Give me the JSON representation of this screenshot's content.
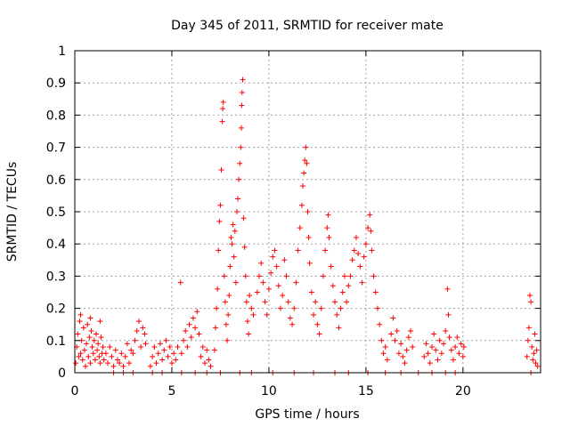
{
  "chart_data": {
    "type": "scatter",
    "title": "Day 345 of 2011, SRMTID for receiver mate",
    "xlabel": "GPS time / hours",
    "ylabel": "SRMTID / TECUs",
    "xlim": [
      0,
      24
    ],
    "ylim": [
      0,
      1
    ],
    "xticks": [
      "0",
      "5",
      "10",
      "15",
      "20"
    ],
    "yticks": [
      "0",
      "0.1",
      "0.2",
      "0.3",
      "0.4",
      "0.5",
      "0.6",
      "0.7",
      "0.8",
      "0.9",
      "1"
    ],
    "grid": true,
    "marker": "plus",
    "color": "#ff0000",
    "points": [
      [
        0.05,
        0.03
      ],
      [
        0.1,
        0.08
      ],
      [
        0.15,
        0.12
      ],
      [
        0.2,
        0.05
      ],
      [
        0.25,
        0.16
      ],
      [
        0.3,
        0.06
      ],
      [
        0.35,
        0.1
      ],
      [
        0.4,
        0.04
      ],
      [
        0.45,
        0.14
      ],
      [
        0.5,
        0.07
      ],
      [
        0.55,
        0.02
      ],
      [
        0.6,
        0.09
      ],
      [
        0.65,
        0.15
      ],
      [
        0.7,
        0.05
      ],
      [
        0.75,
        0.11
      ],
      [
        0.8,
        0.03
      ],
      [
        0.85,
        0.13
      ],
      [
        0.9,
        0.08
      ],
      [
        0.95,
        0.06
      ],
      [
        1.0,
        0.1
      ],
      [
        1.05,
        0.04
      ],
      [
        1.1,
        0.12
      ],
      [
        1.15,
        0.07
      ],
      [
        1.2,
        0.09
      ],
      [
        1.25,
        0.05
      ],
      [
        1.3,
        0.03
      ],
      [
        1.35,
        0.11
      ],
      [
        1.4,
        0.06
      ],
      [
        1.45,
        0.08
      ],
      [
        1.5,
        0.04
      ],
      [
        1.6,
        0.06
      ],
      [
        1.7,
        0.03
      ],
      [
        1.8,
        0.08
      ],
      [
        1.9,
        0.05
      ],
      [
        2.0,
        0.02
      ],
      [
        2.1,
        0.07
      ],
      [
        2.2,
        0.04
      ],
      [
        2.3,
        0.03
      ],
      [
        2.4,
        0.06
      ],
      [
        2.5,
        0.02
      ],
      [
        2.6,
        0.05
      ],
      [
        2.7,
        0.09
      ],
      [
        2.8,
        0.03
      ],
      [
        2.9,
        0.07
      ],
      [
        3.0,
        0.06
      ],
      [
        3.1,
        0.1
      ],
      [
        3.2,
        0.13
      ],
      [
        3.3,
        0.16
      ],
      [
        3.4,
        0.08
      ],
      [
        3.5,
        0.14
      ],
      [
        3.6,
        0.12
      ],
      [
        3.65,
        0.09
      ],
      [
        0.3,
        0.18
      ],
      [
        0.8,
        0.17
      ],
      [
        1.3,
        0.16
      ],
      [
        3.9,
        0.02
      ],
      [
        4.0,
        0.05
      ],
      [
        4.1,
        0.08
      ],
      [
        4.2,
        0.03
      ],
      [
        4.3,
        0.06
      ],
      [
        4.4,
        0.09
      ],
      [
        4.5,
        0.04
      ],
      [
        4.6,
        0.07
      ],
      [
        4.7,
        0.1
      ],
      [
        4.8,
        0.05
      ],
      [
        4.9,
        0.08
      ],
      [
        5.0,
        0.03
      ],
      [
        5.1,
        0.06
      ],
      [
        5.2,
        0.04
      ],
      [
        5.3,
        0.08
      ],
      [
        5.45,
        0.28
      ],
      [
        5.5,
        0.06
      ],
      [
        5.6,
        0.1
      ],
      [
        5.7,
        0.13
      ],
      [
        5.8,
        0.08
      ],
      [
        5.9,
        0.15
      ],
      [
        6.0,
        0.11
      ],
      [
        6.1,
        0.17
      ],
      [
        6.2,
        0.14
      ],
      [
        6.3,
        0.19
      ],
      [
        6.4,
        0.12
      ],
      [
        6.5,
        0.05
      ],
      [
        6.6,
        0.08
      ],
      [
        6.7,
        0.03
      ],
      [
        6.8,
        0.07
      ],
      [
        6.9,
        0.04
      ],
      [
        7.0,
        0.02
      ],
      [
        7.2,
        0.07
      ],
      [
        7.25,
        0.14
      ],
      [
        7.3,
        0.2
      ],
      [
        7.35,
        0.26
      ],
      [
        7.4,
        0.38
      ],
      [
        7.45,
        0.47
      ],
      [
        7.5,
        0.52
      ],
      [
        7.55,
        0.63
      ],
      [
        7.6,
        0.78
      ],
      [
        7.62,
        0.82
      ],
      [
        7.65,
        0.84
      ],
      [
        7.7,
        0.3
      ],
      [
        7.75,
        0.22
      ],
      [
        7.8,
        0.15
      ],
      [
        7.85,
        0.1
      ],
      [
        7.9,
        0.18
      ],
      [
        7.95,
        0.24
      ],
      [
        8.0,
        0.33
      ],
      [
        8.05,
        0.42
      ],
      [
        8.1,
        0.4
      ],
      [
        8.15,
        0.46
      ],
      [
        8.2,
        0.36
      ],
      [
        8.25,
        0.44
      ],
      [
        8.3,
        0.28
      ],
      [
        8.35,
        0.5
      ],
      [
        8.4,
        0.54
      ],
      [
        8.45,
        0.6
      ],
      [
        8.5,
        0.65
      ],
      [
        8.55,
        0.7
      ],
      [
        8.58,
        0.76
      ],
      [
        8.6,
        0.83
      ],
      [
        8.62,
        0.87
      ],
      [
        8.65,
        0.91
      ],
      [
        8.7,
        0.48
      ],
      [
        8.75,
        0.39
      ],
      [
        8.8,
        0.3
      ],
      [
        8.85,
        0.22
      ],
      [
        8.9,
        0.16
      ],
      [
        8.95,
        0.12
      ],
      [
        9.0,
        0.24
      ],
      [
        9.1,
        0.2
      ],
      [
        9.2,
        0.18
      ],
      [
        9.4,
        0.25
      ],
      [
        9.5,
        0.3
      ],
      [
        9.6,
        0.34
      ],
      [
        9.7,
        0.28
      ],
      [
        9.8,
        0.22
      ],
      [
        9.9,
        0.18
      ],
      [
        10.0,
        0.26
      ],
      [
        10.1,
        0.31
      ],
      [
        10.2,
        0.36
      ],
      [
        10.3,
        0.38
      ],
      [
        10.4,
        0.33
      ],
      [
        10.5,
        0.27
      ],
      [
        10.6,
        0.2
      ],
      [
        10.7,
        0.24
      ],
      [
        10.8,
        0.35
      ],
      [
        10.9,
        0.3
      ],
      [
        11.0,
        0.22
      ],
      [
        11.1,
        0.17
      ],
      [
        11.2,
        0.15
      ],
      [
        11.3,
        0.2
      ],
      [
        11.4,
        0.28
      ],
      [
        11.5,
        0.38
      ],
      [
        11.6,
        0.45
      ],
      [
        11.7,
        0.52
      ],
      [
        11.75,
        0.58
      ],
      [
        11.8,
        0.62
      ],
      [
        11.85,
        0.66
      ],
      [
        11.9,
        0.7
      ],
      [
        11.95,
        0.65
      ],
      [
        12.0,
        0.5
      ],
      [
        12.05,
        0.42
      ],
      [
        12.1,
        0.34
      ],
      [
        12.2,
        0.25
      ],
      [
        12.3,
        0.18
      ],
      [
        12.4,
        0.22
      ],
      [
        12.5,
        0.15
      ],
      [
        12.6,
        0.12
      ],
      [
        12.7,
        0.2
      ],
      [
        12.8,
        0.3
      ],
      [
        12.9,
        0.38
      ],
      [
        13.0,
        0.45
      ],
      [
        13.05,
        0.49
      ],
      [
        13.1,
        0.42
      ],
      [
        13.2,
        0.33
      ],
      [
        13.3,
        0.27
      ],
      [
        13.4,
        0.22
      ],
      [
        13.5,
        0.18
      ],
      [
        13.6,
        0.14
      ],
      [
        13.7,
        0.2
      ],
      [
        13.8,
        0.25
      ],
      [
        13.9,
        0.3
      ],
      [
        14.0,
        0.22
      ],
      [
        14.1,
        0.27
      ],
      [
        14.2,
        0.3
      ],
      [
        14.3,
        0.35
      ],
      [
        14.4,
        0.38
      ],
      [
        14.5,
        0.42
      ],
      [
        14.6,
        0.37
      ],
      [
        14.7,
        0.33
      ],
      [
        14.8,
        0.28
      ],
      [
        14.9,
        0.36
      ],
      [
        15.0,
        0.4
      ],
      [
        15.1,
        0.45
      ],
      [
        15.2,
        0.49
      ],
      [
        15.25,
        0.44
      ],
      [
        15.3,
        0.38
      ],
      [
        15.4,
        0.3
      ],
      [
        15.5,
        0.25
      ],
      [
        15.6,
        0.2
      ],
      [
        15.7,
        0.15
      ],
      [
        15.8,
        0.1
      ],
      [
        15.9,
        0.06
      ],
      [
        16.0,
        0.08
      ],
      [
        16.1,
        0.04
      ],
      [
        16.3,
        0.12
      ],
      [
        16.4,
        0.17
      ],
      [
        16.5,
        0.1
      ],
      [
        16.6,
        0.13
      ],
      [
        16.7,
        0.06
      ],
      [
        16.8,
        0.09
      ],
      [
        16.9,
        0.05
      ],
      [
        17.0,
        0.03
      ],
      [
        17.1,
        0.07
      ],
      [
        17.2,
        0.11
      ],
      [
        17.3,
        0.13
      ],
      [
        17.4,
        0.08
      ],
      [
        18.0,
        0.05
      ],
      [
        18.1,
        0.09
      ],
      [
        18.2,
        0.06
      ],
      [
        18.3,
        0.03
      ],
      [
        18.4,
        0.08
      ],
      [
        18.5,
        0.12
      ],
      [
        18.6,
        0.07
      ],
      [
        18.7,
        0.04
      ],
      [
        18.8,
        0.1
      ],
      [
        18.9,
        0.06
      ],
      [
        19.0,
        0.09
      ],
      [
        19.1,
        0.13
      ],
      [
        19.2,
        0.26
      ],
      [
        19.25,
        0.18
      ],
      [
        19.3,
        0.11
      ],
      [
        19.4,
        0.07
      ],
      [
        19.5,
        0.04
      ],
      [
        19.6,
        0.08
      ],
      [
        19.7,
        0.11
      ],
      [
        19.8,
        0.06
      ],
      [
        19.9,
        0.09
      ],
      [
        20.0,
        0.05
      ],
      [
        20.05,
        0.08
      ],
      [
        23.3,
        0.05
      ],
      [
        23.35,
        0.1
      ],
      [
        23.4,
        0.14
      ],
      [
        23.45,
        0.24
      ],
      [
        23.5,
        0.22
      ],
      [
        23.55,
        0.08
      ],
      [
        23.6,
        0.04
      ],
      [
        23.65,
        0.06
      ],
      [
        23.7,
        0.12
      ],
      [
        23.75,
        0.03
      ],
      [
        23.8,
        0.07
      ],
      [
        23.85,
        0.02
      ],
      [
        2.0,
        0.0
      ],
      [
        2.5,
        0.0
      ],
      [
        3.0,
        0.0
      ],
      [
        4.0,
        0.0
      ],
      [
        4.5,
        0.0
      ],
      [
        5.5,
        0.0
      ],
      [
        6.2,
        0.0
      ],
      [
        6.8,
        0.0
      ],
      [
        7.5,
        0.0
      ],
      [
        8.5,
        0.0
      ],
      [
        9.1,
        0.0
      ],
      [
        10.2,
        0.0
      ],
      [
        11.3,
        0.0
      ],
      [
        12.3,
        0.0
      ],
      [
        13.4,
        0.0
      ],
      [
        14.1,
        0.0
      ],
      [
        15.1,
        0.0
      ],
      [
        16.0,
        0.0
      ],
      [
        16.8,
        0.0
      ],
      [
        17.7,
        0.0
      ],
      [
        18.4,
        0.0
      ],
      [
        19.1,
        0.0
      ],
      [
        19.6,
        0.0
      ],
      [
        23.5,
        0.0
      ]
    ]
  }
}
